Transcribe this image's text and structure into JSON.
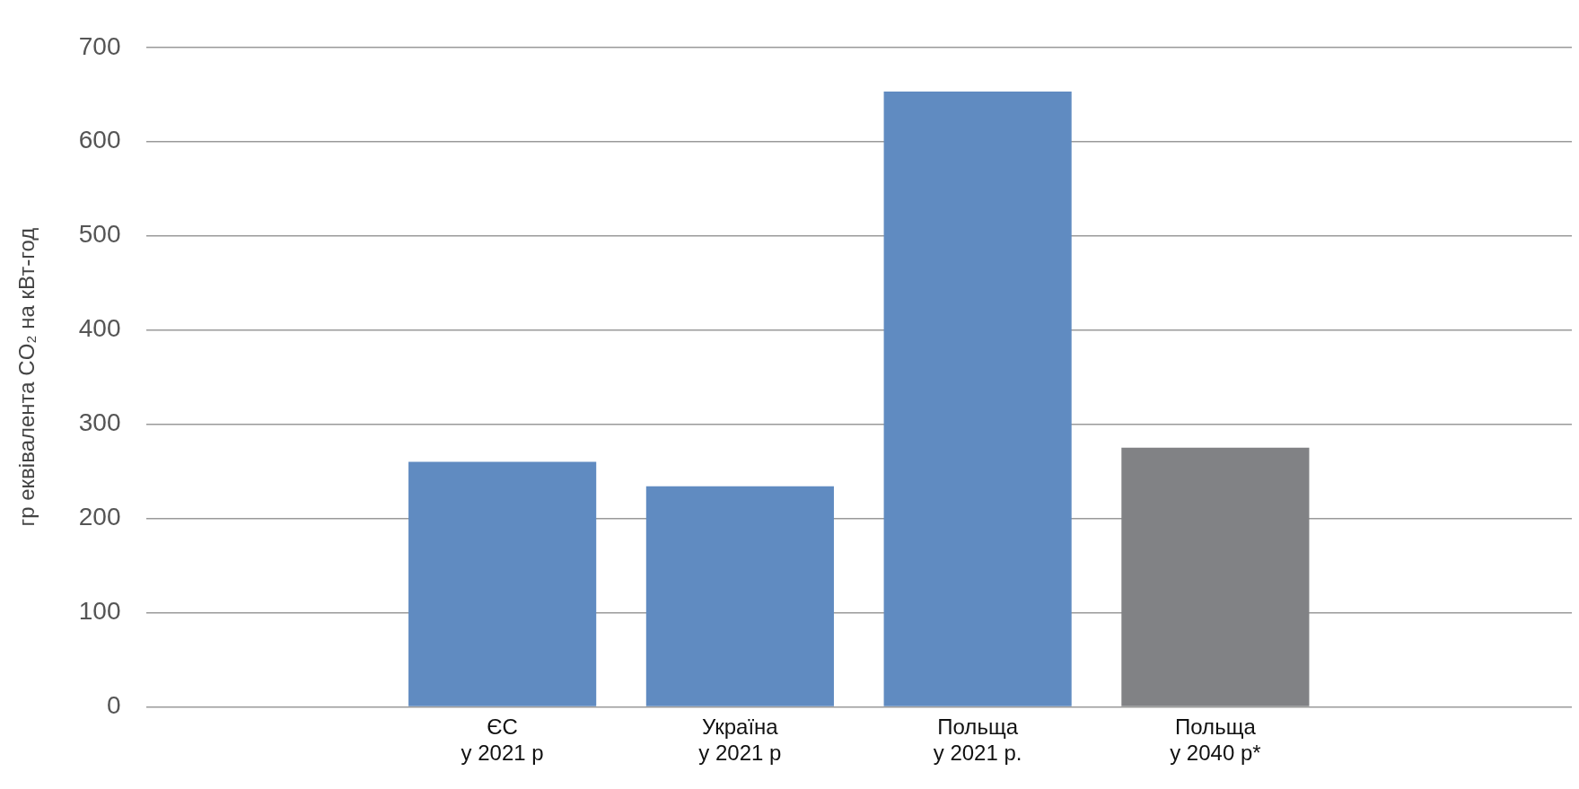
{
  "chart_data": {
    "type": "bar",
    "ylabel": "гр еквівалента CO₂ на кВт-год",
    "categories": [
      null,
      "ЄС\nу 2021 р",
      "Україна\nу 2021 р",
      "Польща\nу 2021 р.",
      "Польща\nу 2040 р*",
      null
    ],
    "values": [
      null,
      260,
      234,
      653,
      275,
      null
    ],
    "colors": [
      "#608bc1",
      "#608bc1",
      "#608bc1",
      "#608bc1",
      "#818285",
      "#818285"
    ],
    "ylim": [
      0,
      700
    ],
    "yticks": [
      0,
      100,
      200,
      300,
      400,
      500,
      600,
      700
    ],
    "grid": "y",
    "legend": false
  }
}
